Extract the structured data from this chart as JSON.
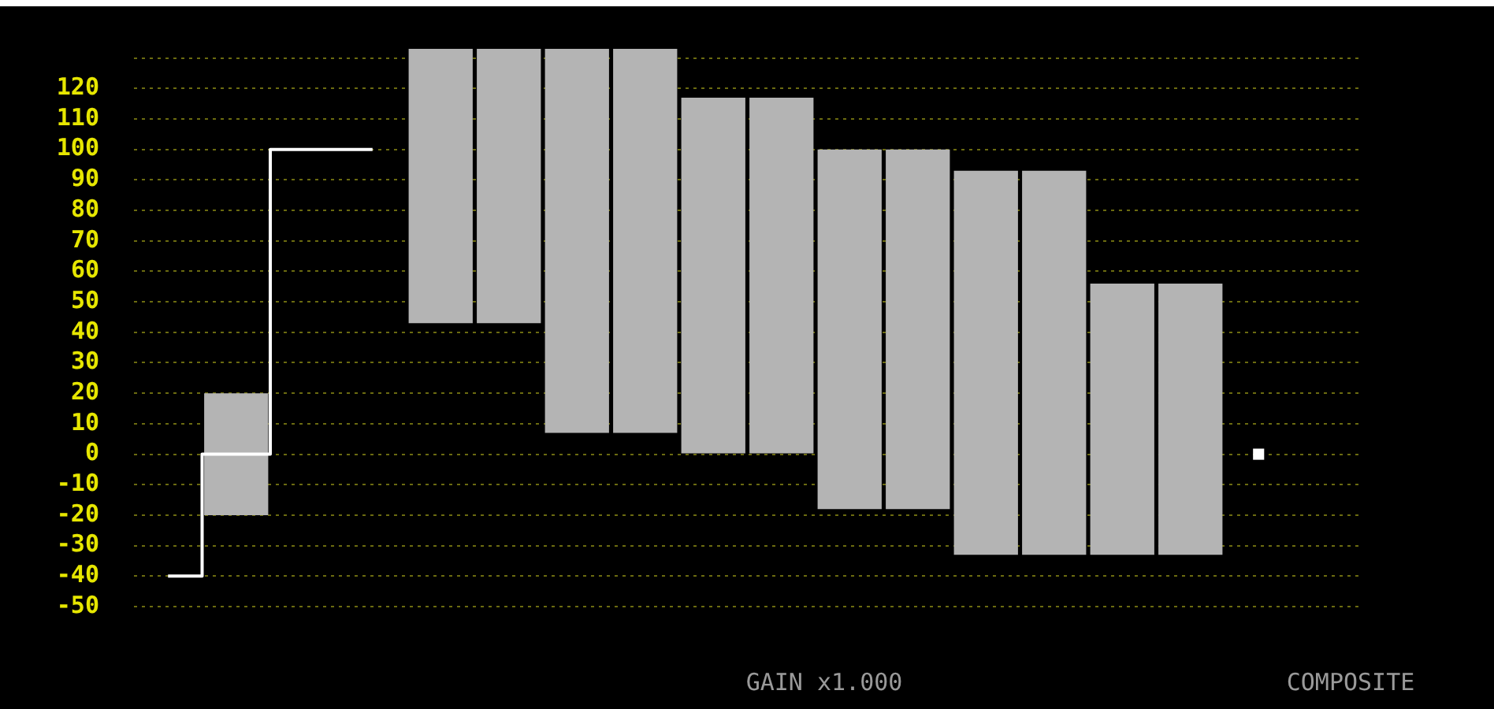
{
  "chart_data": {
    "type": "bar",
    "categories": [
      null,
      null,
      null,
      null,
      null,
      null,
      null,
      null,
      null,
      null,
      null,
      null,
      null,
      null,
      null,
      null,
      null,
      null
    ],
    "series": [
      {
        "type": "step",
        "color": "#ffffff",
        "values": [
          -40,
          0,
          100,
          100,
          null,
          null,
          null,
          null,
          null,
          null,
          null,
          null,
          null,
          null,
          null,
          null,
          0,
          null
        ]
      },
      {
        "color": "#b4b4b4",
        "values": [
          null,
          40,
          null,
          null,
          90,
          90,
          126,
          126,
          117,
          117,
          118,
          118,
          126,
          126,
          89,
          89,
          null,
          null
        ],
        "base": [
          null,
          -20,
          null,
          null,
          43,
          43,
          7,
          7,
          0,
          0,
          -18,
          -18,
          -33,
          -33,
          -33,
          -33,
          null,
          null
        ]
      }
    ],
    "ylim": [
      -50,
      133
    ],
    "yticks": [
      -50,
      -40,
      -30,
      -20,
      -10,
      0,
      10,
      20,
      30,
      40,
      50,
      60,
      70,
      80,
      90,
      100,
      110,
      120,
      {
        "value": 130,
        "label": null
      }
    ],
    "grid": "y",
    "tick_labels": "y",
    "legend": false,
    "annotations": [
      "GAIN x1.000",
      "COMPOSITE"
    ]
  }
}
